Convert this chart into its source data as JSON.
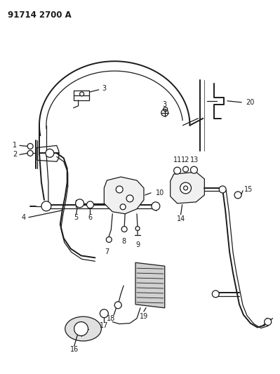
{
  "title": "91714 2700 A",
  "bg_color": "#ffffff",
  "line_color": "#1a1a1a",
  "title_fontsize": 8.5,
  "label_fontsize": 7,
  "fig_width": 3.99,
  "fig_height": 5.33,
  "dpi": 100
}
